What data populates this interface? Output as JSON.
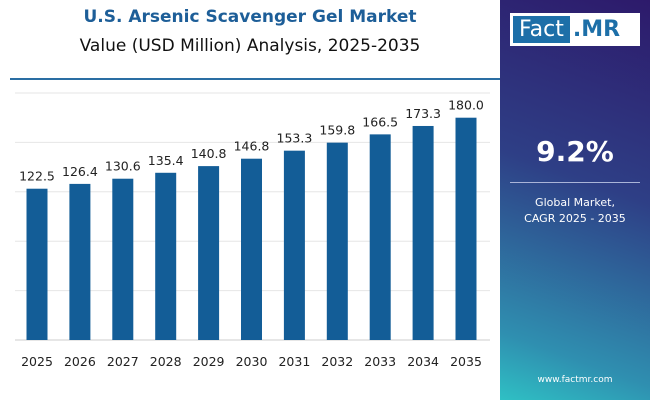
{
  "chart_data": {
    "type": "bar",
    "title": "U.S. Arsenic Scavenger Gel Market",
    "subtitle": "Value (USD Million) Analysis, 2025-2035",
    "categories": [
      "2025",
      "2026",
      "2027",
      "2028",
      "2029",
      "2030",
      "2031",
      "2032",
      "2033",
      "2034",
      "2035"
    ],
    "values": [
      122.5,
      126.4,
      130.6,
      135.4,
      140.8,
      146.8,
      153.3,
      159.8,
      166.5,
      173.3,
      180.0
    ],
    "value_labels": [
      "122.5",
      "126.4",
      "130.6",
      "135.4",
      "140.8",
      "146.8",
      "153.3",
      "159.8",
      "166.5",
      "173.3",
      "180.0"
    ],
    "ylim": [
      0,
      200
    ],
    "grid": true,
    "bar_color": "#135d97"
  },
  "sidebar": {
    "logo": {
      "part1": "Fact",
      "part2": ".MR"
    },
    "cagr": "9.2%",
    "cagr_label_line1": "Global Market,",
    "cagr_label_line2": "CAGR 2025 - 2035",
    "website": "www.factmr.com"
  }
}
